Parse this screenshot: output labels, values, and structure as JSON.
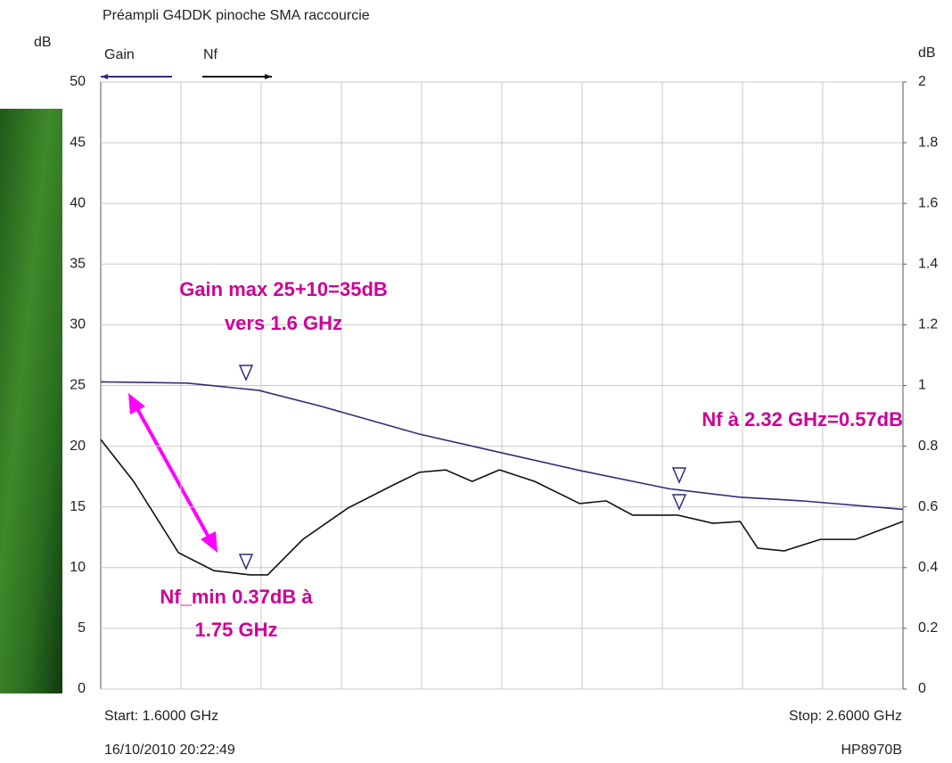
{
  "chart_data": {
    "type": "line",
    "title": "Préampli G4DDK pinoche SMA raccourcie",
    "ylabel": "dB",
    "y2label": "dB",
    "start_label": "Start: 1.6000 GHz",
    "stop_label": "Stop: 2.6000 GHz",
    "timestamp": "16/10/2010 20:22:49",
    "instrument": "HP8970B",
    "annotations": [
      "Gain max 25+10=35dB",
      "vers 1.6 GHz",
      "Nf à 2.32 GHz=0.57dB",
      "Nf_min 0.37dB à",
      "1.75 GHz"
    ],
    "xlim": [
      1.6,
      2.6
    ],
    "ylim": [
      0,
      50
    ],
    "yticks": [
      0,
      5,
      10,
      15,
      20,
      25,
      30,
      35,
      40,
      45,
      50
    ],
    "y2lim": [
      0,
      2
    ],
    "y2ticks": [
      0,
      0.2,
      0.4,
      0.6,
      0.8,
      1,
      1.2,
      1.4,
      1.6,
      1.8,
      2
    ],
    "grid": true,
    "series": [
      {
        "name": "Gain",
        "color": "#2e2e7a",
        "axis": "y",
        "x": [
          1.6,
          1.708,
          1.797,
          1.874,
          1.997,
          2.097,
          2.197,
          2.308,
          2.397,
          2.474,
          2.6
        ],
        "values": [
          25.3,
          25.2,
          24.6,
          23.3,
          21,
          19.5,
          18,
          16.5,
          15.8,
          15.5,
          14.8
        ]
      },
      {
        "name": "Nf",
        "color": "#111111",
        "axis": "y2",
        "x": [
          1.6,
          1.641,
          1.697,
          1.741,
          1.786,
          1.808,
          1.852,
          1.908,
          1.963,
          1.997,
          2.03,
          2.063,
          2.097,
          2.141,
          2.197,
          2.23,
          2.263,
          2.319,
          2.363,
          2.397,
          2.419,
          2.452,
          2.497,
          2.541,
          2.6
        ],
        "values": [
          0.822,
          0.684,
          0.449,
          0.39,
          0.376,
          0.376,
          0.493,
          0.596,
          0.67,
          0.714,
          0.722,
          0.684,
          0.722,
          0.684,
          0.611,
          0.62,
          0.573,
          0.573,
          0.546,
          0.552,
          0.464,
          0.455,
          0.493,
          0.493,
          0.552
        ]
      }
    ]
  }
}
